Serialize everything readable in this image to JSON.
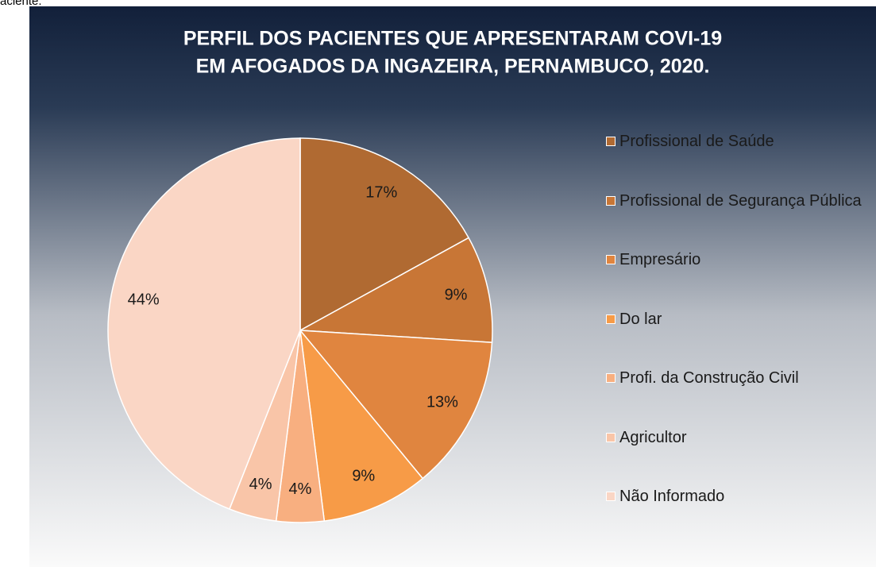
{
  "caption": "aciente.",
  "chart_data": {
    "type": "pie",
    "title": [
      "PERFIL DOS PACIENTES QUE APRESENTARAM COVI-19",
      "EM AFOGADOS DA INGAZEIRA, PERNAMBUCO, 2020."
    ],
    "categories": [
      "Profissional de Saúde",
      "Profissional de Segurança Pública",
      "Empresário",
      "Do lar",
      "Profi. da Construção Civil",
      "Agricultor",
      "Não Informado"
    ],
    "values": [
      17,
      9,
      13,
      9,
      4,
      4,
      44
    ],
    "value_labels": [
      "17%",
      "9%",
      "13%",
      "9%",
      "4%",
      "4%",
      "44%"
    ],
    "colors": [
      "#b06a32",
      "#c87636",
      "#e0853f",
      "#f79b47",
      "#f8af80",
      "#f9c5a8",
      "#fad6c5"
    ],
    "legend": "right"
  }
}
